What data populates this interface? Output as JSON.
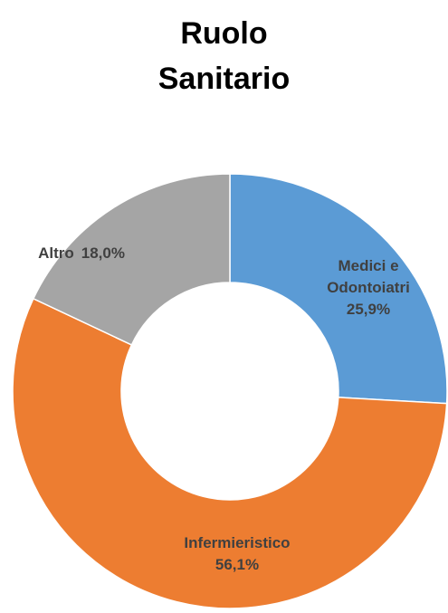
{
  "chart_data": {
    "type": "donut",
    "title": "Ruolo Sanitario",
    "categories": [
      "Medici e Odontoiatri",
      "Infermieristico",
      "Altro"
    ],
    "values": [
      25.9,
      56.1,
      18.0
    ],
    "value_labels": [
      "25,9%",
      "56,1%",
      "18,0%"
    ],
    "colors": [
      "#5b9bd5",
      "#ed7d31",
      "#a5a5a5"
    ]
  }
}
